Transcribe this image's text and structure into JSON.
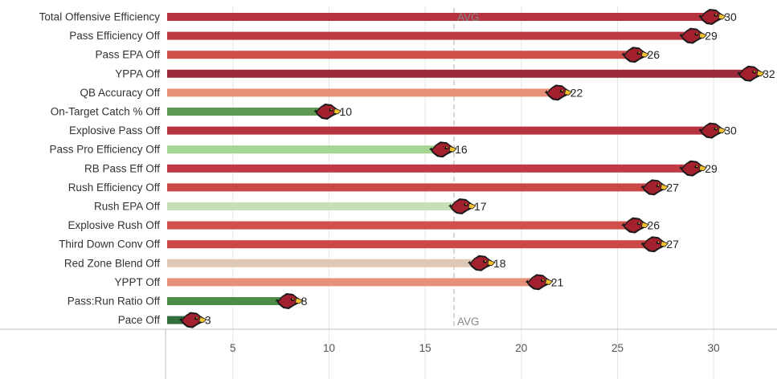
{
  "chart_data": {
    "type": "bar",
    "orientation": "horizontal",
    "categories": [
      "Total Offensive Efficiency",
      "Pass Efficiency Off",
      "Pass EPA Off",
      "YPPA Off",
      "QB Accuracy Off",
      "On-Target Catch % Off",
      "Explosive Pass Off",
      "Pass Pro Efficiency Off",
      "RB Pass Eff Off",
      "Rush Efficiency Off",
      "Rush EPA Off",
      "Explosive Rush Off",
      "Third Down Conv Off",
      "Red Zone Blend Off",
      "YPPT Off",
      "Pass:Run Ratio Off",
      "Pace Off"
    ],
    "values": [
      30,
      29,
      26,
      32,
      22,
      10,
      30,
      16,
      29,
      27,
      17,
      26,
      27,
      18,
      21,
      8,
      3
    ],
    "bar_colors": [
      "#b5343f",
      "#bf3a44",
      "#d2504c",
      "#9c2a3a",
      "#e8917a",
      "#5f9a55",
      "#b5343f",
      "#a6d694",
      "#bf3a44",
      "#cc4847",
      "#c5dfb7",
      "#d2504c",
      "#cc4847",
      "#dfc8b6",
      "#e8917a",
      "#4c8c47",
      "#346e3d"
    ],
    "x_ticks": [
      5,
      10,
      15,
      20,
      25,
      30
    ],
    "xlim": [
      1.5,
      33
    ],
    "avg_value": 16.5,
    "avg_label": "AVG",
    "xlabel": "",
    "ylabel": "",
    "grid": "vertical",
    "marker_icon": "cardinals-head-logo-icon"
  }
}
